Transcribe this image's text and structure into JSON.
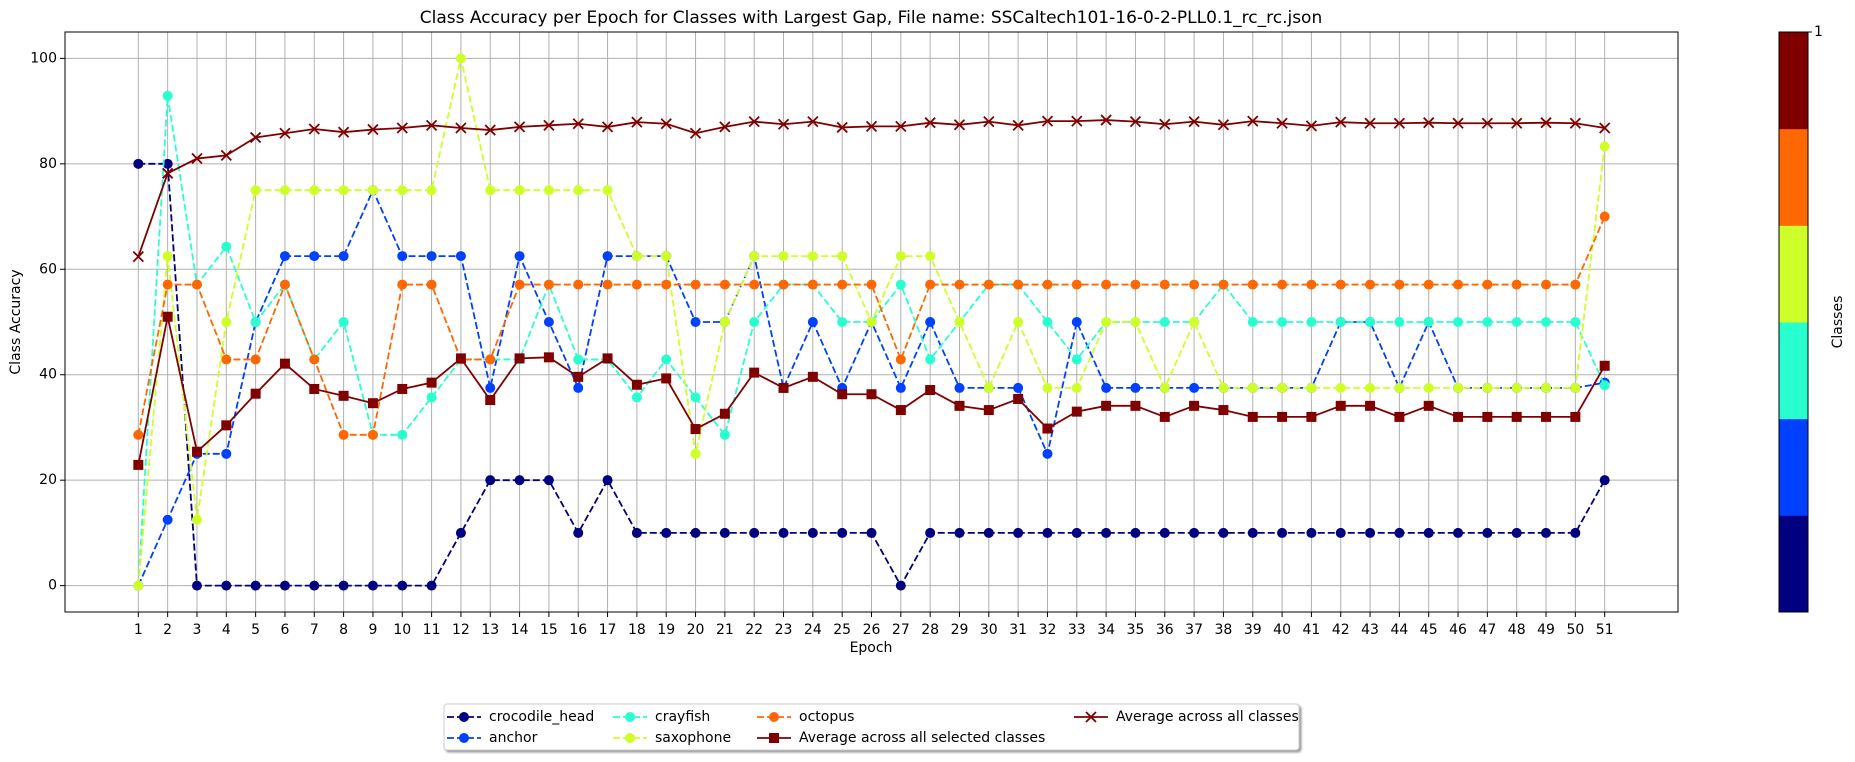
{
  "chart_data": {
    "type": "line",
    "title": "Class Accuracy per Epoch for Classes with Largest Gap, File name: SSCaltech101-16-0-2-PLL0.1_rc_rc.json",
    "xlabel": "Epoch",
    "ylabel": "Class Accuracy",
    "x": [
      1,
      2,
      3,
      4,
      5,
      6,
      7,
      8,
      9,
      10,
      11,
      12,
      13,
      14,
      15,
      16,
      17,
      18,
      19,
      20,
      21,
      22,
      23,
      24,
      25,
      26,
      27,
      28,
      29,
      30,
      31,
      32,
      33,
      34,
      35,
      36,
      37,
      38,
      39,
      40,
      41,
      42,
      43,
      44,
      45,
      46,
      47,
      48,
      49,
      50,
      51
    ],
    "xlim": [
      -1.5,
      53.5
    ],
    "xticks": [
      1,
      2,
      3,
      4,
      5,
      6,
      7,
      8,
      9,
      10,
      11,
      12,
      13,
      14,
      15,
      16,
      17,
      18,
      19,
      20,
      21,
      22,
      23,
      24,
      25,
      26,
      27,
      28,
      29,
      30,
      31,
      32,
      33,
      34,
      35,
      36,
      37,
      38,
      39,
      40,
      41,
      42,
      43,
      44,
      45,
      46,
      47,
      48,
      49,
      50,
      51
    ],
    "ylim": [
      -5,
      105
    ],
    "yticks": [
      0,
      20,
      40,
      60,
      80,
      100
    ],
    "grid": true,
    "series": [
      {
        "name": "crocodile_head",
        "color": "#000080",
        "marker": "o",
        "linestyle": "dashed",
        "values": [
          80,
          80,
          0,
          0,
          0,
          0,
          0,
          0,
          0,
          0,
          0,
          10,
          20,
          20,
          20,
          10,
          20,
          10,
          10,
          10,
          10,
          10,
          10,
          10,
          10,
          10,
          0,
          10,
          10,
          10,
          10,
          10,
          10,
          10,
          10,
          10,
          10,
          10,
          10,
          10,
          10,
          10,
          10,
          10,
          10,
          10,
          10,
          10,
          10,
          10,
          20
        ]
      },
      {
        "name": "anchor",
        "color": "#0040ff",
        "marker": "o",
        "linestyle": "dashed",
        "values": [
          0,
          12.5,
          25,
          25,
          50,
          62.5,
          62.5,
          62.5,
          75,
          62.5,
          62.5,
          62.5,
          37.5,
          62.5,
          50,
          37.5,
          62.5,
          62.5,
          62.5,
          50,
          50,
          62.5,
          37.5,
          50,
          37.5,
          50,
          37.5,
          50,
          37.5,
          37.5,
          37.5,
          25,
          50,
          37.5,
          37.5,
          37.5,
          37.5,
          37.5,
          37.5,
          37.5,
          37.5,
          50,
          50,
          37.5,
          50,
          37.5,
          37.5,
          37.5,
          37.5,
          37.5,
          38.5
        ]
      },
      {
        "name": "crayfish",
        "color": "#29ffce",
        "marker": "o",
        "linestyle": "dashed",
        "values": [
          0,
          92.9,
          57.1,
          64.3,
          50,
          57.1,
          42.9,
          50,
          28.6,
          28.6,
          35.7,
          42.9,
          42.9,
          42.9,
          57.1,
          42.9,
          42.9,
          35.7,
          42.9,
          35.7,
          28.6,
          50,
          57.1,
          57.1,
          50,
          50,
          57.1,
          42.9,
          50,
          57.1,
          57.1,
          50,
          42.9,
          50,
          50,
          50,
          50,
          57.1,
          50,
          50,
          50,
          50,
          50,
          50,
          50,
          50,
          50,
          50,
          50,
          50,
          38
        ]
      },
      {
        "name": "saxophone",
        "color": "#ceff29",
        "marker": "o",
        "linestyle": "dashed",
        "values": [
          0,
          62.5,
          12.5,
          50,
          75,
          75,
          75,
          75,
          75,
          75,
          75,
          100,
          75,
          75,
          75,
          75,
          75,
          62.5,
          62.5,
          25,
          50,
          62.5,
          62.5,
          62.5,
          62.5,
          50,
          62.5,
          62.5,
          50,
          37.5,
          50,
          37.5,
          37.5,
          50,
          50,
          37.5,
          50,
          37.5,
          37.5,
          37.5,
          37.5,
          37.5,
          37.5,
          37.5,
          37.5,
          37.5,
          37.5,
          37.5,
          37.5,
          37.5,
          83.3
        ]
      },
      {
        "name": "octopus",
        "color": "#ff6800",
        "marker": "o",
        "linestyle": "dashed",
        "values": [
          28.6,
          57.1,
          57.1,
          42.9,
          42.9,
          57.1,
          42.9,
          28.6,
          28.6,
          57.1,
          57.1,
          42.9,
          42.9,
          57.1,
          57.1,
          57.1,
          57.1,
          57.1,
          57.1,
          57.1,
          57.1,
          57.1,
          57.1,
          57.1,
          57.1,
          57.1,
          42.9,
          57.1,
          57.1,
          57.1,
          57.1,
          57.1,
          57.1,
          57.1,
          57.1,
          57.1,
          57.1,
          57.1,
          57.1,
          57.1,
          57.1,
          57.1,
          57.1,
          57.1,
          57.1,
          57.1,
          57.1,
          57.1,
          57.1,
          57.1,
          70
        ]
      },
      {
        "name": "Average across all selected classes",
        "color": "#800000",
        "marker": "s",
        "linestyle": "solid",
        "values": [
          22.9,
          51,
          25.4,
          30.4,
          36.4,
          42.1,
          37.3,
          36,
          34.6,
          37.3,
          38.5,
          43.1,
          35.2,
          43.1,
          43.3,
          39.6,
          43.1,
          38.1,
          39.3,
          29.7,
          32.6,
          40.4,
          37.5,
          39.6,
          36.3,
          36.3,
          33.3,
          37.1,
          34.1,
          33.3,
          35.4,
          29.8,
          33,
          34.1,
          34.1,
          32,
          34.1,
          33.3,
          32,
          32,
          32,
          34.1,
          34.1,
          32,
          34.1,
          32,
          32,
          32,
          32,
          32,
          41.7
        ]
      },
      {
        "name": "Average across all classes",
        "color": "#800000",
        "marker": "x",
        "linestyle": "solid",
        "values": [
          62.4,
          78.2,
          81,
          81.6,
          85,
          85.8,
          86.6,
          86,
          86.5,
          86.8,
          87.3,
          86.8,
          86.4,
          87,
          87.3,
          87.6,
          87,
          87.9,
          87.6,
          85.8,
          87,
          88,
          87.5,
          88,
          86.9,
          87.1,
          87.1,
          87.8,
          87.4,
          88,
          87.3,
          88.1,
          88.1,
          88.3,
          88,
          87.5,
          88,
          87.4,
          88.1,
          87.7,
          87.2,
          87.9,
          87.7,
          87.7,
          87.8,
          87.7,
          87.7,
          87.7,
          87.8,
          87.7,
          86.8
        ]
      }
    ],
    "colorbar": {
      "label": "Classes",
      "colors": [
        "#000080",
        "#0040ff",
        "#29ffce",
        "#ceff29",
        "#ff6800",
        "#800000"
      ],
      "lim": [
        0,
        1
      ],
      "ticks": [
        1
      ]
    }
  }
}
